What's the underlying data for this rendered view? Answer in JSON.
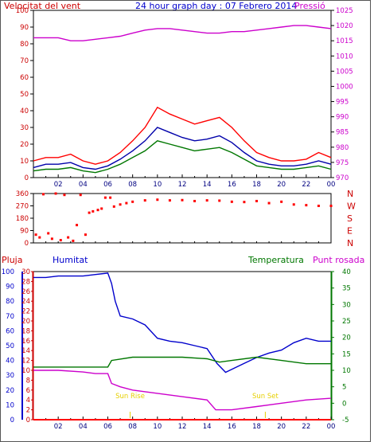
{
  "chart_data": [
    {
      "type": "line",
      "title": "24 hour graph day : 07 Febrero 2014",
      "left_label": "Velocitat del vent",
      "right_label": "Pressió",
      "x_ticks": [
        "02",
        "04",
        "06",
        "08",
        "10",
        "12",
        "14",
        "16",
        "18",
        "20",
        "22",
        "00"
      ],
      "y_left": {
        "min": 0,
        "max": 100,
        "step": 10
      },
      "y_right": {
        "min": 970,
        "max": 1025,
        "step": 5
      },
      "series": [
        {
          "axis": "right",
          "color": "#cc00cc",
          "x": [
            0,
            1,
            2,
            3,
            4,
            5,
            6,
            7,
            8,
            9,
            10,
            11,
            12,
            13,
            14,
            15,
            16,
            17,
            18,
            19,
            20,
            21,
            22,
            23,
            24
          ],
          "values": [
            1016,
            1016,
            1016,
            1015,
            1015,
            1015.5,
            1016,
            1016.5,
            1017.5,
            1018.5,
            1019,
            1019,
            1018.5,
            1018,
            1017.5,
            1017.5,
            1018,
            1018,
            1018.5,
            1019,
            1019.5,
            1020,
            1020,
            1019.5,
            1019
          ]
        },
        {
          "axis": "left",
          "color": "#ff0000",
          "x": [
            0,
            1,
            2,
            3,
            4,
            5,
            6,
            7,
            8,
            9,
            10,
            11,
            12,
            13,
            14,
            15,
            16,
            17,
            18,
            19,
            20,
            21,
            22,
            23,
            24
          ],
          "values": [
            10,
            12,
            12,
            14,
            10,
            8,
            10,
            15,
            22,
            30,
            42,
            38,
            35,
            32,
            34,
            36,
            30,
            22,
            15,
            12,
            10,
            10,
            11,
            15,
            12
          ]
        },
        {
          "axis": "left",
          "color": "#0000aa",
          "x": [
            0,
            1,
            2,
            3,
            4,
            5,
            6,
            7,
            8,
            9,
            10,
            11,
            12,
            13,
            14,
            15,
            16,
            17,
            18,
            19,
            20,
            21,
            22,
            23,
            24
          ],
          "values": [
            6,
            8,
            8,
            9,
            6,
            5,
            7,
            11,
            16,
            22,
            30,
            27,
            24,
            22,
            23,
            25,
            21,
            15,
            10,
            8,
            7,
            7,
            8,
            10,
            8
          ]
        },
        {
          "axis": "left",
          "color": "#007700",
          "x": [
            0,
            1,
            2,
            3,
            4,
            5,
            6,
            7,
            8,
            9,
            10,
            11,
            12,
            13,
            14,
            15,
            16,
            17,
            18,
            19,
            20,
            21,
            22,
            23,
            24
          ],
          "values": [
            4,
            5,
            5,
            6,
            4,
            3,
            5,
            8,
            12,
            16,
            22,
            20,
            18,
            16,
            17,
            18,
            15,
            11,
            7,
            6,
            5,
            5,
            6,
            7,
            5
          ]
        }
      ]
    },
    {
      "type": "scatter",
      "y_left_ticks": [
        "360",
        "270",
        "180",
        "90",
        "0"
      ],
      "y_right_ticks": [
        "N",
        "W",
        "S",
        "E",
        "N"
      ],
      "color": "#ff0000",
      "x": [
        0.2,
        0.5,
        0.8,
        1.2,
        1.5,
        1.8,
        2.2,
        2.5,
        2.8,
        3.2,
        3.5,
        3.8,
        4.2,
        4.5,
        4.8,
        5.2,
        5.5,
        5.8,
        6.2,
        6.5,
        7,
        7.5,
        8,
        9,
        10,
        11,
        12,
        13,
        14,
        15,
        16,
        17,
        18,
        19,
        20,
        21,
        22,
        23,
        24
      ],
      "values": [
        60,
        40,
        355,
        70,
        30,
        360,
        20,
        350,
        40,
        15,
        130,
        350,
        60,
        220,
        230,
        240,
        250,
        330,
        330,
        265,
        280,
        290,
        300,
        310,
        315,
        310,
        312,
        305,
        310,
        308,
        300,
        298,
        305,
        290,
        300,
        280,
        275,
        270,
        270
      ]
    },
    {
      "type": "line",
      "labels": {
        "rain": "Pluja",
        "humidity": "Humitat",
        "temperature": "Temperatura",
        "dew": "Punt rosada"
      },
      "x_ticks": [
        "02",
        "04",
        "06",
        "08",
        "10",
        "12",
        "14",
        "16",
        "18",
        "20",
        "22",
        "00"
      ],
      "y_rain": {
        "min": 0,
        "max": 30,
        "step": 2
      },
      "y_humidity": {
        "min": 0,
        "max": 100,
        "step": 10
      },
      "y_temp": {
        "min": -5,
        "max": 40,
        "step": 5
      },
      "annotations": [
        {
          "text": "Sun Rise",
          "x": 7.8
        },
        {
          "text": "Sun Set",
          "x": 18.7
        }
      ],
      "series": [
        {
          "axis": "humidity",
          "color": "#0000cc",
          "x": [
            0,
            1,
            2,
            3,
            4,
            5,
            6,
            6.3,
            6.6,
            7,
            8,
            9,
            10,
            11,
            12,
            13,
            14,
            14.8,
            15.5,
            16,
            17,
            18,
            19,
            20,
            21,
            22,
            23,
            24
          ],
          "values": [
            96,
            96,
            97,
            97,
            97,
            98,
            99,
            92,
            80,
            70,
            68,
            64,
            55,
            53,
            52,
            50,
            48,
            38,
            32,
            34,
            38,
            42,
            45,
            47,
            52,
            55,
            53,
            53
          ]
        },
        {
          "axis": "temp",
          "color": "#007700",
          "x": [
            0,
            2,
            4,
            6,
            6.3,
            8,
            10,
            12,
            14,
            15,
            16,
            18,
            20,
            22,
            24
          ],
          "values": [
            11,
            11,
            11,
            11,
            13,
            14,
            14,
            14,
            13.5,
            12.5,
            13,
            14,
            13,
            12,
            12
          ]
        },
        {
          "axis": "temp",
          "color": "#cc00cc",
          "x": [
            0,
            2,
            4,
            5,
            6,
            6.3,
            7,
            8,
            10,
            12,
            14,
            14.7,
            15.2,
            16,
            18,
            20,
            22,
            24
          ],
          "values": [
            10,
            10,
            9.5,
            9,
            9,
            6,
            5,
            4,
            3,
            2,
            1,
            -2,
            -2,
            -2,
            -1,
            0,
            1,
            1.5
          ]
        },
        {
          "axis": "rain",
          "color": "#ff0000",
          "x": [
            0,
            24
          ],
          "values": [
            0,
            0
          ]
        }
      ]
    }
  ]
}
